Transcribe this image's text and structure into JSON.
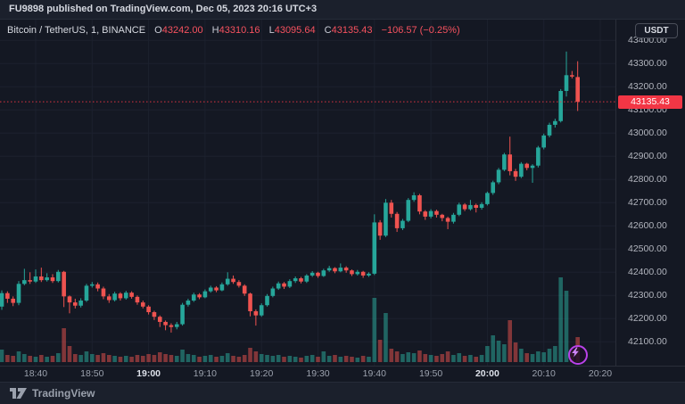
{
  "banner": {
    "text": "FU9898 published on TradingView.com, Dec 05, 2023 20:16 UTC+3"
  },
  "header": {
    "symbol": "Bitcoin / TetherUS, 1, BINANCE",
    "ohlc": [
      {
        "label": "O",
        "value": "43242.00"
      },
      {
        "label": "H",
        "value": "43310.16"
      },
      {
        "label": "L",
        "value": "43095.64"
      },
      {
        "label": "C",
        "value": "43135.43"
      }
    ],
    "change": "−106.57 (−0.25%)"
  },
  "price_axis": {
    "currency_button": "USDT",
    "current_price_label": "43135.43"
  },
  "footer": {
    "logo_text": "TradingView"
  },
  "colors": {
    "background": "#141823",
    "panel": "#1b202c",
    "grid": "#1c212e",
    "border": "#2a2e39",
    "green": "#26a69a",
    "red": "#ef5350",
    "vol_green": "rgba(42,166,152,0.55)",
    "vol_red": "rgba(239,83,80,0.5)",
    "label_red": "#f23645",
    "text": "#d1d4dc",
    "text_dim": "#b2b5be",
    "purple": "#b941e9"
  },
  "chart_data": {
    "type": "candlestick+volume",
    "title": "Bitcoin / TetherUS",
    "interval_minutes": 1,
    "exchange": "BINANCE",
    "quote_currency": "USDT",
    "current_price": 43135.43,
    "ohlc_display": {
      "open": 43242.0,
      "high": 43310.16,
      "low": 43095.64,
      "close": 43135.43,
      "change": -106.57,
      "change_pct": -0.25
    },
    "y_ticks": [
      43400,
      43300,
      43200,
      43100,
      43000,
      42900,
      42800,
      42700,
      42600,
      42500,
      42400,
      42300,
      42200,
      42100
    ],
    "x_ticks": [
      "18:40",
      "18:50",
      "19:00",
      "19:10",
      "19:20",
      "19:30",
      "19:40",
      "19:50",
      "20:00",
      "20:10",
      "20:20"
    ],
    "ylim": [
      41990,
      43490
    ],
    "grid": true,
    "start_time": "18:34",
    "candles_format": [
      "time",
      "open",
      "high",
      "low",
      "close",
      "volume_px"
    ],
    "candles": [
      [
        "18:34",
        42252,
        42322,
        42238,
        42310,
        14
      ],
      [
        "18:35",
        42310,
        42318,
        42268,
        42286,
        8
      ],
      [
        "18:36",
        42286,
        42296,
        42254,
        42268,
        7
      ],
      [
        "18:37",
        42268,
        42362,
        42258,
        42350,
        12
      ],
      [
        "18:38",
        42350,
        42415,
        42344,
        42366,
        9
      ],
      [
        "18:39",
        42366,
        42400,
        42350,
        42360,
        7
      ],
      [
        "18:40",
        42360,
        42412,
        42354,
        42382,
        6
      ],
      [
        "18:41",
        42382,
        42420,
        42358,
        42366,
        8
      ],
      [
        "18:42",
        42366,
        42396,
        42360,
        42378,
        6
      ],
      [
        "18:43",
        42378,
        42392,
        42354,
        42362,
        7
      ],
      [
        "18:44",
        42362,
        42410,
        42356,
        42402,
        10
      ],
      [
        "18:45",
        42402,
        42406,
        42250,
        42296,
        38
      ],
      [
        "18:46",
        42296,
        42300,
        42223,
        42270,
        18
      ],
      [
        "18:47",
        42270,
        42286,
        42244,
        42256,
        9
      ],
      [
        "18:48",
        42256,
        42288,
        42248,
        42278,
        8
      ],
      [
        "18:49",
        42278,
        42350,
        42272,
        42342,
        12
      ],
      [
        "18:50",
        42342,
        42358,
        42334,
        42348,
        9
      ],
      [
        "18:51",
        42348,
        42356,
        42318,
        42330,
        8
      ],
      [
        "18:52",
        42330,
        42338,
        42284,
        42296,
        10
      ],
      [
        "18:53",
        42296,
        42306,
        42268,
        42280,
        8
      ],
      [
        "18:54",
        42280,
        42316,
        42274,
        42308,
        7
      ],
      [
        "18:55",
        42308,
        42314,
        42278,
        42288,
        6
      ],
      [
        "18:56",
        42288,
        42320,
        42282,
        42312,
        7
      ],
      [
        "18:57",
        42312,
        42318,
        42286,
        42294,
        6
      ],
      [
        "18:58",
        42294,
        42300,
        42260,
        42270,
        8
      ],
      [
        "18:59",
        42270,
        42278,
        42244,
        42252,
        7
      ],
      [
        "19:00",
        42252,
        42258,
        42218,
        42228,
        9
      ],
      [
        "19:01",
        42228,
        42234,
        42194,
        42208,
        8
      ],
      [
        "19:02",
        42208,
        42214,
        42164,
        42186,
        11
      ],
      [
        "19:03",
        42186,
        42192,
        42150,
        42172,
        9
      ],
      [
        "19:04",
        42172,
        42180,
        42140,
        42164,
        8
      ],
      [
        "19:05",
        42164,
        42186,
        42154,
        42176,
        7
      ],
      [
        "19:06",
        42176,
        42268,
        42170,
        42260,
        14
      ],
      [
        "19:07",
        42260,
        42286,
        42252,
        42278,
        9
      ],
      [
        "19:08",
        42278,
        42312,
        42272,
        42304,
        8
      ],
      [
        "19:09",
        42304,
        42310,
        42284,
        42292,
        6
      ],
      [
        "19:10",
        42292,
        42326,
        42288,
        42318,
        7
      ],
      [
        "19:11",
        42318,
        42342,
        42312,
        42334,
        8
      ],
      [
        "19:12",
        42334,
        42340,
        42314,
        42322,
        6
      ],
      [
        "19:13",
        42322,
        42356,
        42318,
        42348,
        7
      ],
      [
        "19:14",
        42348,
        42400,
        42342,
        42372,
        10
      ],
      [
        "19:15",
        42372,
        42386,
        42350,
        42358,
        7
      ],
      [
        "19:16",
        42358,
        42366,
        42334,
        42342,
        6
      ],
      [
        "19:17",
        42342,
        42348,
        42298,
        42308,
        8
      ],
      [
        "19:18",
        42308,
        42312,
        42210,
        42232,
        16
      ],
      [
        "19:19",
        42232,
        42240,
        42170,
        42214,
        12
      ],
      [
        "19:20",
        42214,
        42266,
        42208,
        42258,
        9
      ],
      [
        "19:21",
        42258,
        42306,
        42252,
        42298,
        8
      ],
      [
        "19:22",
        42298,
        42338,
        42292,
        42330,
        7
      ],
      [
        "19:23",
        42330,
        42360,
        42324,
        42352,
        8
      ],
      [
        "19:24",
        42352,
        42358,
        42328,
        42338,
        6
      ],
      [
        "19:25",
        42338,
        42370,
        42332,
        42362,
        7
      ],
      [
        "19:26",
        42362,
        42382,
        42354,
        42374,
        6
      ],
      [
        "19:27",
        42374,
        42380,
        42352,
        42360,
        5
      ],
      [
        "19:28",
        42360,
        42392,
        42354,
        42386,
        7
      ],
      [
        "19:29",
        42386,
        42405,
        42380,
        42398,
        8
      ],
      [
        "19:30",
        42398,
        42402,
        42376,
        42384,
        6
      ],
      [
        "19:31",
        42384,
        42415,
        42380,
        42408,
        12
      ],
      [
        "19:32",
        42408,
        42428,
        42402,
        42418,
        7
      ],
      [
        "19:33",
        42418,
        42422,
        42396,
        42404,
        8
      ],
      [
        "19:34",
        42404,
        42438,
        42400,
        42420,
        6
      ],
      [
        "19:35",
        42420,
        42426,
        42398,
        42408,
        7
      ],
      [
        "19:36",
        42408,
        42412,
        42384,
        42392,
        6
      ],
      [
        "19:37",
        42392,
        42410,
        42386,
        42402,
        5
      ],
      [
        "19:38",
        42402,
        42406,
        42376,
        42386,
        7
      ],
      [
        "19:39",
        42386,
        42400,
        42380,
        42394,
        6
      ],
      [
        "19:40",
        42394,
        42650,
        42388,
        42615,
        72
      ],
      [
        "19:41",
        42615,
        42625,
        42540,
        42558,
        25
      ],
      [
        "19:42",
        42558,
        42716,
        42552,
        42700,
        55
      ],
      [
        "19:43",
        42700,
        42712,
        42636,
        42652,
        15
      ],
      [
        "19:44",
        42652,
        42660,
        42574,
        42590,
        12
      ],
      [
        "19:45",
        42590,
        42630,
        42582,
        42622,
        9
      ],
      [
        "19:46",
        42622,
        42720,
        42616,
        42712,
        11
      ],
      [
        "19:47",
        42712,
        42745,
        42704,
        42732,
        10
      ],
      [
        "19:48",
        42732,
        42738,
        42650,
        42662,
        13
      ],
      [
        "19:49",
        42662,
        42668,
        42626,
        42640,
        9
      ],
      [
        "19:50",
        42640,
        42672,
        42632,
        42664,
        8
      ],
      [
        "19:51",
        42664,
        42670,
        42636,
        42648,
        7
      ],
      [
        "19:52",
        42648,
        42652,
        42620,
        42634,
        9
      ],
      [
        "19:53",
        42634,
        42640,
        42586,
        42618,
        12
      ],
      [
        "19:54",
        42618,
        42656,
        42610,
        42648,
        8
      ],
      [
        "19:55",
        42648,
        42700,
        42642,
        42692,
        10
      ],
      [
        "19:56",
        42692,
        42698,
        42664,
        42672,
        7
      ],
      [
        "19:57",
        42672,
        42712,
        42666,
        42690,
        8
      ],
      [
        "19:58",
        42690,
        42696,
        42658,
        42678,
        6
      ],
      [
        "19:59",
        42678,
        42702,
        42670,
        42694,
        8
      ],
      [
        "20:00",
        42694,
        42748,
        42688,
        42742,
        18
      ],
      [
        "20:01",
        42742,
        42795,
        42734,
        42788,
        30
      ],
      [
        "20:02",
        42788,
        42850,
        42780,
        42842,
        24
      ],
      [
        "20:03",
        42842,
        42915,
        42836,
        42908,
        20
      ],
      [
        "20:04",
        42908,
        42985,
        42818,
        42836,
        47
      ],
      [
        "20:05",
        42836,
        42846,
        42794,
        42812,
        22
      ],
      [
        "20:06",
        42812,
        42875,
        42806,
        42868,
        15
      ],
      [
        "20:07",
        42868,
        42872,
        42840,
        42850,
        10
      ],
      [
        "20:08",
        42850,
        42866,
        42786,
        42860,
        9
      ],
      [
        "20:09",
        42860,
        42945,
        42852,
        42938,
        12
      ],
      [
        "20:10",
        42938,
        42998,
        42930,
        42990,
        11
      ],
      [
        "20:11",
        42990,
        43045,
        42982,
        43036,
        15
      ],
      [
        "20:12",
        43036,
        43062,
        43024,
        43052,
        18
      ],
      [
        "20:13",
        43052,
        43190,
        43046,
        43182,
        95
      ],
      [
        "20:14",
        43182,
        43352,
        43158,
        43250,
        80
      ],
      [
        "20:15",
        43250,
        43268,
        43236,
        43244,
        14
      ],
      [
        "20:16",
        43242,
        43310.16,
        43095.64,
        43135.43,
        28
      ]
    ]
  }
}
